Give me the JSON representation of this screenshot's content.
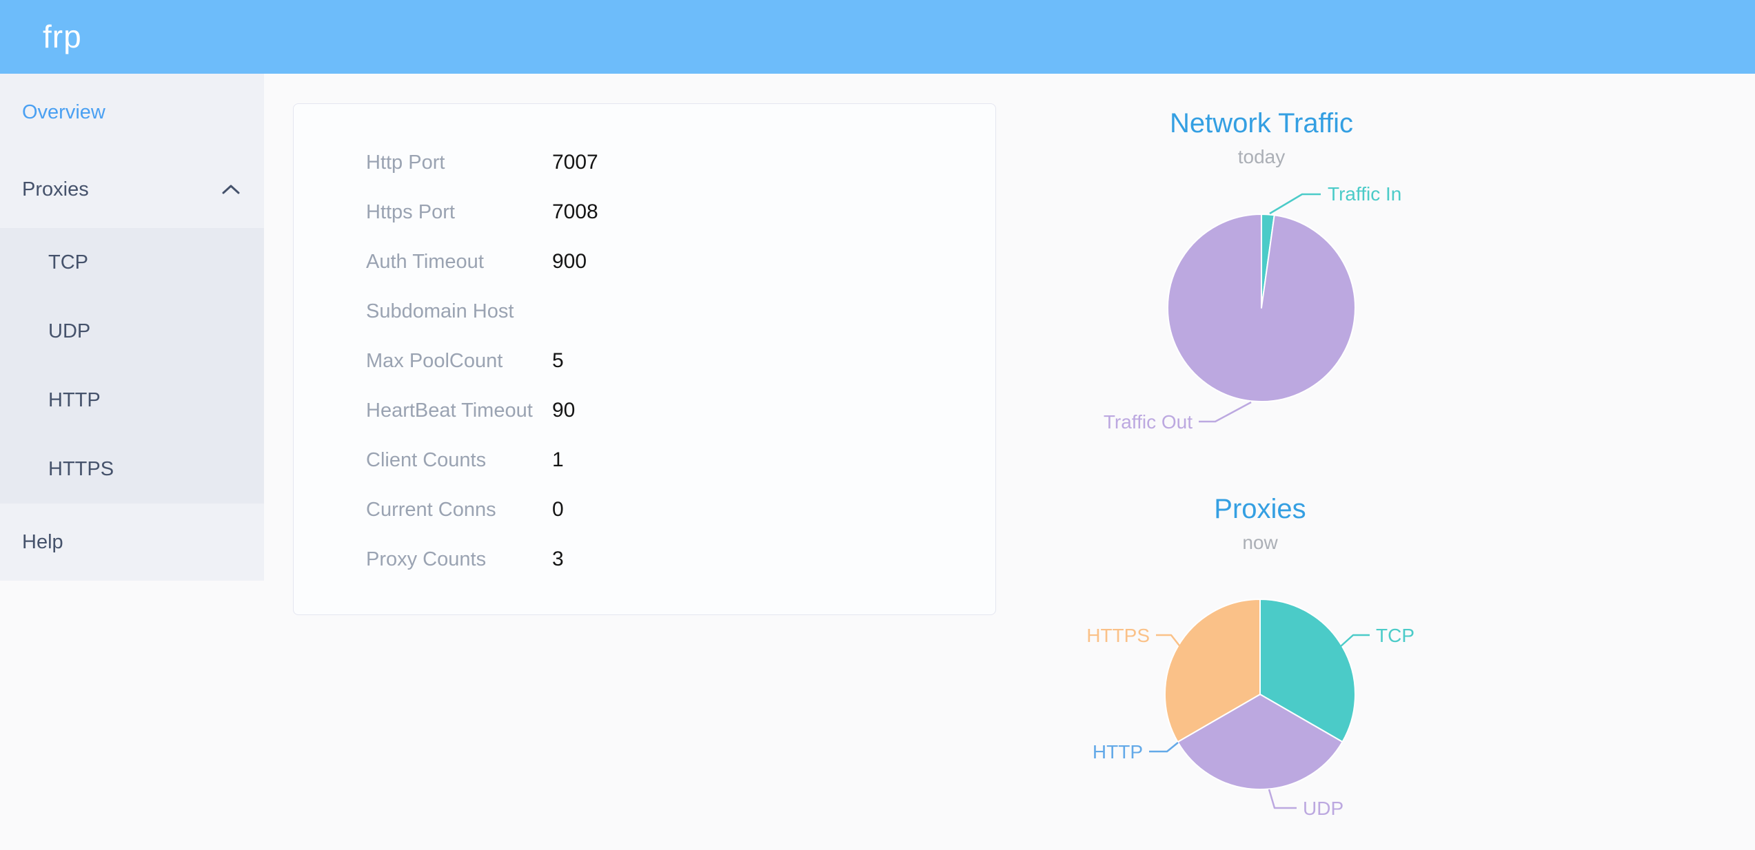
{
  "app": {
    "title": "frp"
  },
  "colors": {
    "header_bg": "#6DBCFA",
    "title_blue": "#349FE2",
    "active_link_blue": "#4AA0F2",
    "sidebar_text": "#45526B",
    "label_gray": "#9AA3B2",
    "subtitle_gray": "#ABAFB6",
    "teal": "#4BCBC8",
    "purple": "#BCA8E0",
    "orange": "#FAC188",
    "http_blue": "#63A9E8"
  },
  "sidebar": {
    "overview_label": "Overview",
    "proxies_label": "Proxies",
    "submenu": [
      {
        "label": "TCP"
      },
      {
        "label": "UDP"
      },
      {
        "label": "HTTP"
      },
      {
        "label": "HTTPS"
      }
    ],
    "help_label": "Help"
  },
  "overview_card": {
    "rows": [
      {
        "label": "Http Port",
        "value": "7007"
      },
      {
        "label": "Https Port",
        "value": "7008"
      },
      {
        "label": "Auth Timeout",
        "value": "900"
      },
      {
        "label": "Subdomain Host",
        "value": ""
      },
      {
        "label": "Max PoolCount",
        "value": "5"
      },
      {
        "label": "HeartBeat Timeout",
        "value": "90"
      },
      {
        "label": "Client Counts",
        "value": "1"
      },
      {
        "label": "Current Conns",
        "value": "0"
      },
      {
        "label": "Proxy Counts",
        "value": "3"
      }
    ]
  },
  "chart_data": [
    {
      "type": "pie",
      "title": "Network Traffic",
      "subtitle": "today",
      "legend_position": "callout-labels",
      "slices": [
        {
          "label": "Traffic In",
          "percent": 2.2,
          "color": "#4BCBC8"
        },
        {
          "label": "Traffic Out",
          "percent": 97.8,
          "color": "#BCA8E0"
        }
      ]
    },
    {
      "type": "pie",
      "title": "Proxies",
      "subtitle": "now",
      "legend_position": "callout-labels",
      "slices": [
        {
          "label": "TCP",
          "value": 1,
          "percent": 33.33,
          "color": "#4BCBC8"
        },
        {
          "label": "UDP",
          "value": 1,
          "percent": 33.33,
          "color": "#BCA8E0"
        },
        {
          "label": "HTTP",
          "value": 0,
          "percent": 0,
          "color": "#63A9E8"
        },
        {
          "label": "HTTPS",
          "value": 1,
          "percent": 33.34,
          "color": "#FAC188"
        }
      ]
    }
  ]
}
